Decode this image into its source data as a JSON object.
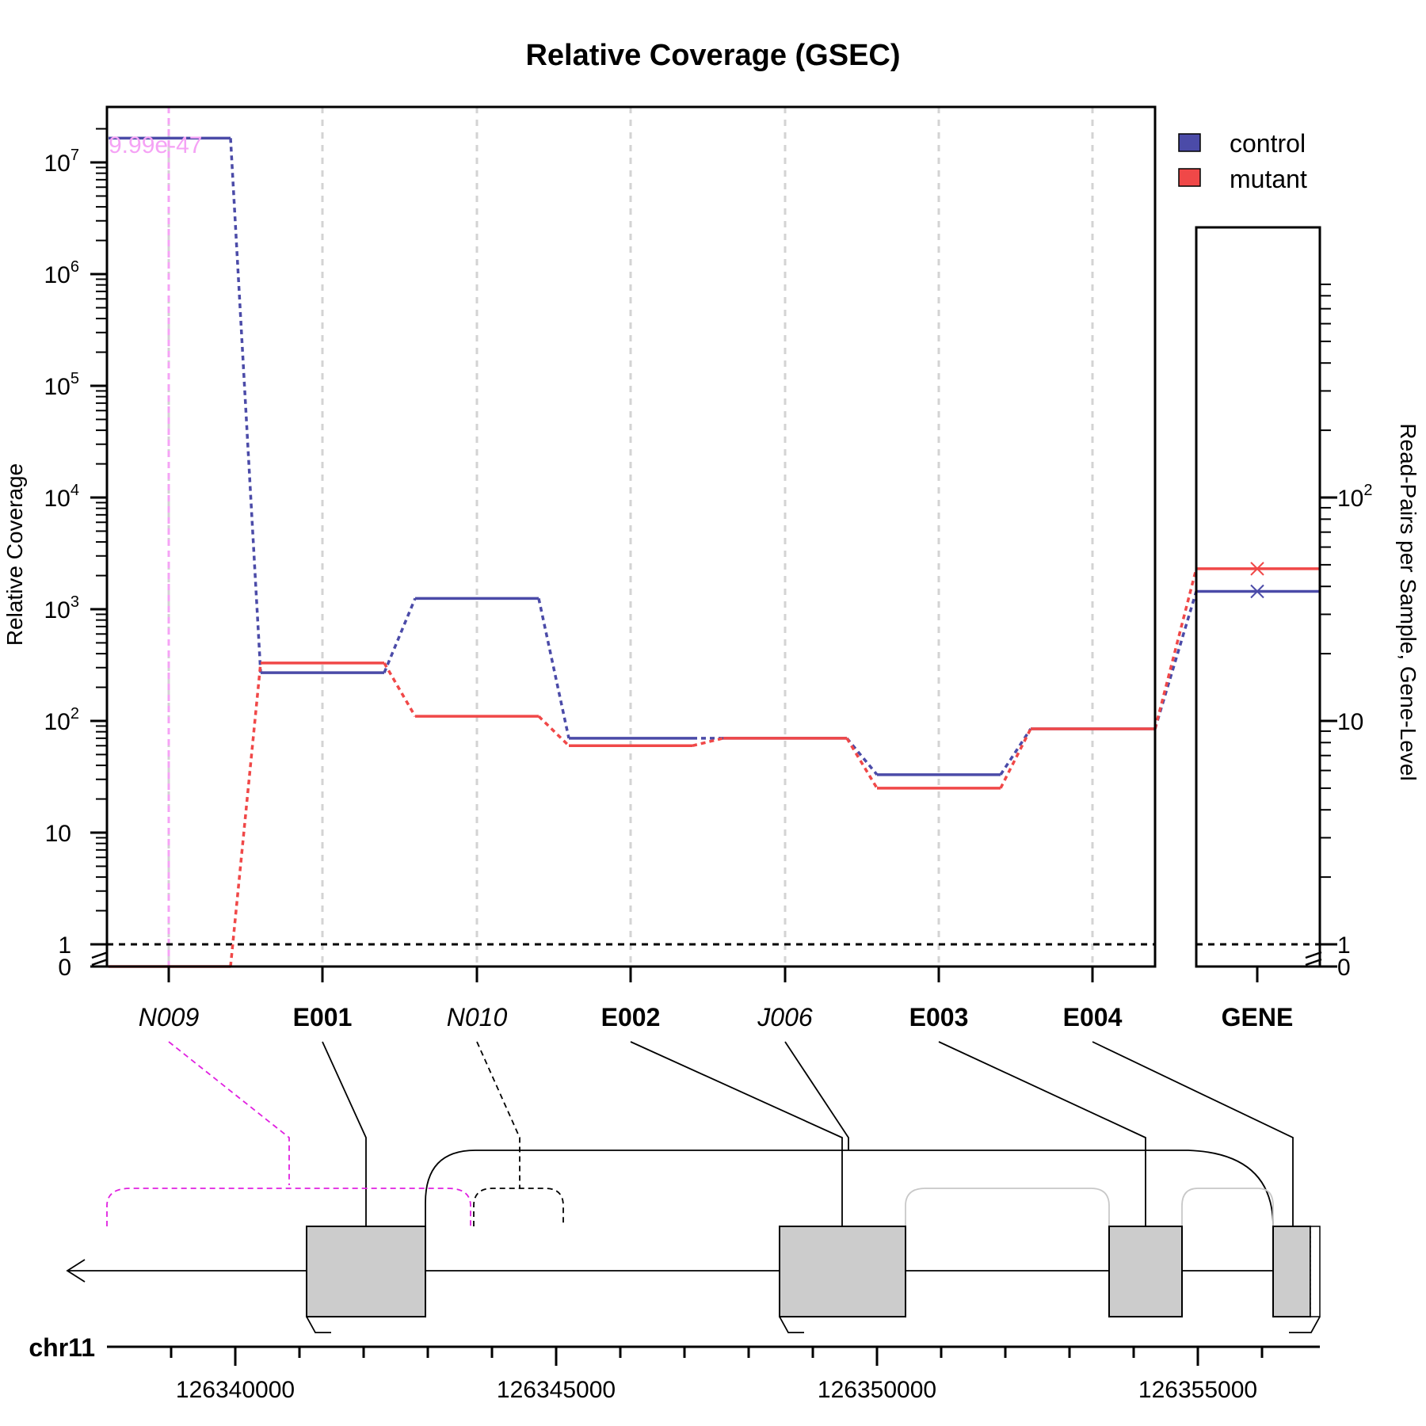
{
  "chart_data": {
    "type": "line",
    "title": "Relative Coverage (GSEC)",
    "ylabel": "Relative Coverage",
    "ylabel_right": "Read-Pairs per Sample, Gene-Level",
    "y_scale": "log (broken axis at 0)",
    "ylim": [
      0,
      30000000
    ],
    "y_ticks": [
      {
        "value": 0,
        "base": "0",
        "exp": ""
      },
      {
        "value": 1,
        "base": "1",
        "exp": ""
      },
      {
        "value": 10,
        "base": "10",
        "exp": ""
      },
      {
        "value": 100,
        "base": "10",
        "exp": "2"
      },
      {
        "value": 1000,
        "base": "10",
        "exp": "3"
      },
      {
        "value": 10000,
        "base": "10",
        "exp": "4"
      },
      {
        "value": 100000,
        "base": "10",
        "exp": "5"
      },
      {
        "value": 1000000,
        "base": "10",
        "exp": "6"
      },
      {
        "value": 10000000,
        "base": "10",
        "exp": "7"
      }
    ],
    "right_ticks": [
      {
        "value": 0,
        "base": "0",
        "exp": ""
      },
      {
        "value": 1,
        "base": "1",
        "exp": ""
      },
      {
        "value": 10,
        "base": "10",
        "exp": ""
      },
      {
        "value": 100,
        "base": "10",
        "exp": "2"
      }
    ],
    "features": [
      {
        "label": "N009",
        "style": "italic"
      },
      {
        "label": "E001",
        "style": "bold"
      },
      {
        "label": "N010",
        "style": "italic"
      },
      {
        "label": "E002",
        "style": "bold"
      },
      {
        "label": "J006",
        "style": "italic"
      },
      {
        "label": "E003",
        "style": "bold"
      },
      {
        "label": "E004",
        "style": "bold"
      }
    ],
    "gene_label": "GENE",
    "series": [
      {
        "name": "control",
        "color": "#4B4BA8",
        "values": [
          16500000,
          270,
          1250,
          70,
          70,
          33,
          85
        ],
        "gene_level": 38
      },
      {
        "name": "mutant",
        "color": "#F04848",
        "values": [
          0,
          330,
          110,
          60,
          70,
          25,
          85
        ],
        "gene_level": 48
      }
    ],
    "reference_line": 1,
    "significant": {
      "feature": "N009",
      "pvalue_label": "9.99e-47",
      "color": "#F5A3F5"
    },
    "chromosome": "chr11",
    "genomic_ticks": [
      126340000,
      126345000,
      126350000,
      126355000
    ],
    "legend_position": "top-right"
  }
}
